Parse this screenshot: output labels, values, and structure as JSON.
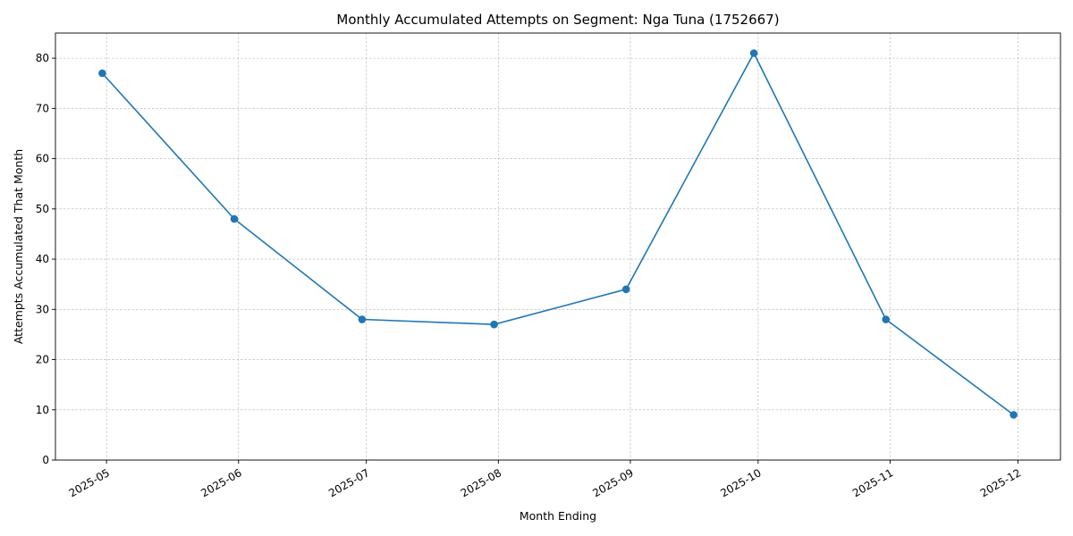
{
  "chart_data": {
    "type": "line",
    "title": "Monthly Accumulated Attempts on Segment: Nga Tuna (1752667)",
    "xlabel": "Month Ending",
    "ylabel": "Attempts Accumulated That Month",
    "x": [
      "2025-04-30",
      "2025-05-31",
      "2025-06-30",
      "2025-07-31",
      "2025-08-31",
      "2025-09-30",
      "2025-10-31",
      "2025-11-30"
    ],
    "values": [
      77,
      48,
      28,
      27,
      34,
      81,
      28,
      9
    ],
    "x_ticks": [
      "2025-05",
      "2025-06",
      "2025-07",
      "2025-08",
      "2025-09",
      "2025-10",
      "2025-11",
      "2025-12"
    ],
    "x_tick_dates": [
      "2025-05-01",
      "2025-06-01",
      "2025-07-01",
      "2025-08-01",
      "2025-09-01",
      "2025-10-01",
      "2025-11-01",
      "2025-12-01"
    ],
    "y_ticks": [
      0,
      10,
      20,
      30,
      40,
      50,
      60,
      70,
      80
    ],
    "ylim": [
      0,
      85
    ],
    "xlim": [
      "2025-04-19",
      "2025-12-11"
    ],
    "grid": true,
    "marker": "circle",
    "colors": {
      "series": "#1f77b4",
      "grid": "#b0b0b0"
    }
  }
}
